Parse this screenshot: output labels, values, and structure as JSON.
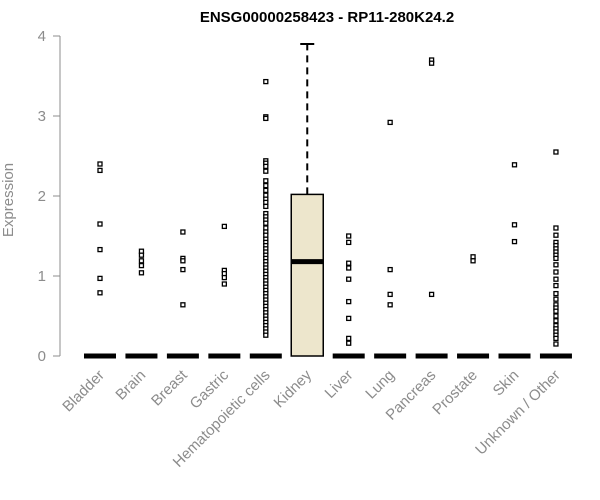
{
  "chart_data": {
    "type": "boxplot",
    "title": "ENSG00000258423 - RP11-280K24.2",
    "xlabel": "",
    "ylabel": "Expression",
    "ylim": [
      0,
      4
    ],
    "yticks": [
      0,
      1,
      2,
      3,
      4
    ],
    "colors": {
      "box_fill": "#ede6cc",
      "stroke": "#000000",
      "axis": "#8c8c8c"
    },
    "categories": [
      "Bladder",
      "Brain",
      "Breast",
      "Gastric",
      "Hematopoietic cells",
      "Kidney",
      "Liver",
      "Lung",
      "Pancreas",
      "Prostate",
      "Skin",
      "Unknown / Other"
    ],
    "boxes": [
      {
        "category": "Kidney",
        "q1": 0,
        "median": 1.18,
        "q3": 2.02,
        "whisker_low": 0,
        "whisker_high": 3.9
      }
    ],
    "outliers": {
      "Bladder": [
        2.4,
        2.32,
        1.65,
        1.33,
        0.97,
        0.79
      ],
      "Brain": [
        1.31,
        1.26,
        1.19,
        1.13,
        1.04
      ],
      "Breast": [
        1.55,
        1.22,
        1.19,
        1.08,
        0.64
      ],
      "Gastric": [
        1.62,
        1.07,
        1.03,
        0.98,
        0.9
      ],
      "Hematopoietic cells": [
        3.43,
        2.99,
        2.97,
        2.44,
        2.41,
        2.37,
        2.31,
        2.19,
        2.13,
        2.07,
        2.01,
        1.96,
        1.92,
        1.87,
        1.78,
        1.74,
        1.7,
        1.66,
        1.6,
        1.55,
        1.51,
        1.46,
        1.42,
        1.38,
        1.34,
        1.3,
        1.26,
        1.22,
        1.18,
        1.14,
        1.1,
        1.06,
        1.02,
        0.98,
        0.94,
        0.9,
        0.86,
        0.82,
        0.78,
        0.74,
        0.7,
        0.66,
        0.62,
        0.58,
        0.54,
        0.5,
        0.46,
        0.42,
        0.38,
        0.34,
        0.3,
        0.26
      ],
      "Kidney": [],
      "Liver": [
        1.5,
        1.42,
        1.16,
        1.1,
        0.96,
        0.68,
        0.47,
        0.22,
        0.16
      ],
      "Lung": [
        2.92,
        1.08,
        0.77,
        0.64
      ],
      "Pancreas": [
        3.7,
        3.66,
        0.77
      ],
      "Prostate": [
        1.24,
        1.19
      ],
      "Skin": [
        2.39,
        1.64,
        1.43
      ],
      "Unknown / Other": [
        2.55,
        1.6,
        1.51,
        1.42,
        1.38,
        1.34,
        1.3,
        1.26,
        1.22,
        1.14,
        1.05,
        0.96,
        0.88,
        0.78,
        0.71,
        0.64,
        0.6,
        0.56,
        0.5,
        0.44,
        0.38,
        0.34,
        0.3,
        0.26,
        0.22,
        0.15
      ]
    },
    "zero_cluster_categories": [
      "Bladder",
      "Brain",
      "Breast",
      "Gastric",
      "Hematopoietic cells",
      "Liver",
      "Lung",
      "Pancreas",
      "Prostate",
      "Skin",
      "Unknown / Other"
    ]
  }
}
